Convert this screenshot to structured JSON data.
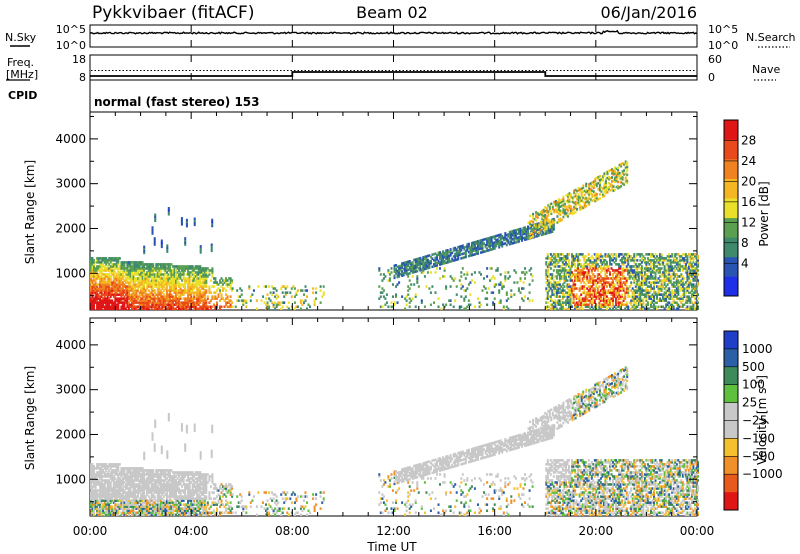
{
  "header": {
    "station": "Pykkvibaer (fitACF)",
    "beam": "Beam 02",
    "date": "06/Jan/2016"
  },
  "panels": {
    "nsky_label": "N.Sky",
    "nsky_top": "10^5",
    "nsky_bottom": "10^0",
    "nsearch_label": "N.Search",
    "nsearch_top": "10^5",
    "nsearch_bottom": "10^0",
    "freq_label_1": "Freq.",
    "freq_label_2": "[MHz]",
    "freq_top": "18",
    "freq_bottom": "8",
    "nave_label": "Nave",
    "nave_top": "60",
    "nave_bottom": "0",
    "cpid_label": "CPID",
    "cpid_text": "normal (fast stereo) 153"
  },
  "chart_data": [
    {
      "type": "heatmap",
      "name": "power",
      "ylabel": "Slant Range [km]",
      "xlabel": "Time UT",
      "ylim": [
        180,
        4600
      ],
      "xlim": [
        0,
        24
      ],
      "y_ticks": [
        "1000",
        "2000",
        "3000",
        "4000"
      ],
      "x_ticks": [
        "00:00",
        "04:00",
        "08:00",
        "12:00",
        "16:00",
        "20:00",
        "00:00"
      ],
      "colorbar": {
        "label": "Power [dB]",
        "tick_labels": [
          "4",
          "8",
          "12",
          "16",
          "20",
          "24",
          "28"
        ],
        "colors": [
          "#1f2fe8",
          "#2a54b4",
          "#3f8a6c",
          "#5aa050",
          "#eae02a",
          "#f5b624",
          "#f08320",
          "#e84a1c",
          "#e01616"
        ]
      }
    },
    {
      "type": "heatmap",
      "name": "velocity",
      "ylabel": "Slant Range [km]",
      "xlabel": "Time UT",
      "ylim": [
        180,
        4600
      ],
      "xlim": [
        0,
        24
      ],
      "y_ticks": [
        "1000",
        "2000",
        "3000",
        "4000"
      ],
      "x_ticks": [
        "00:00",
        "04:00",
        "08:00",
        "12:00",
        "16:00",
        "20:00",
        "00:00"
      ],
      "colorbar": {
        "label_main": "Velocity [m s",
        "label_exp": "-1",
        "label_end": "]",
        "tick_labels": [
          "1000",
          "500",
          "100",
          "25",
          "−25",
          "−100",
          "−500",
          "−1000"
        ],
        "colors": [
          "#1f3fc8",
          "#2b5fa6",
          "#3e8a58",
          "#5fc040",
          "#c8c8c8",
          "#c8c8c8",
          "#f5c030",
          "#f09028",
          "#e85a1c",
          "#e01616"
        ]
      }
    }
  ],
  "frequency_series": {
    "x": [
      0,
      8,
      8,
      18,
      18,
      24
    ],
    "y": [
      9.6,
      9.6,
      11.2,
      11.2,
      9.6,
      9.6
    ],
    "nave_dotted": 11.8
  }
}
